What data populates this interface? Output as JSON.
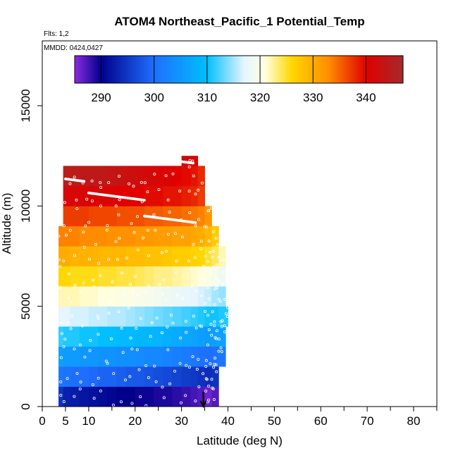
{
  "chart_data": {
    "type": "heatmap",
    "title": "ATOM4 Northeast_Pacific_1 Potential_Temp",
    "flights_note": "Flts: 1,2",
    "date_note": "MMDD: 0424,0427",
    "xlabel": "Latitude (deg N)",
    "ylabel": "Altitude (m)",
    "xlim": [
      0,
      85
    ],
    "ylim": [
      0,
      17500
    ],
    "xticks": [
      0,
      5,
      10,
      20,
      30,
      40,
      50,
      60,
      70,
      80
    ],
    "yticks": [
      0,
      5000,
      10000,
      15000
    ],
    "grid": false,
    "colorbar": {
      "range": [
        285,
        347
      ],
      "ticks": [
        290,
        300,
        310,
        320,
        330,
        340
      ],
      "stops": [
        {
          "value": 285,
          "color": "#8a2be2"
        },
        {
          "value": 290,
          "color": "#00008b"
        },
        {
          "value": 300,
          "color": "#1e6fff"
        },
        {
          "value": 310,
          "color": "#00bfff"
        },
        {
          "value": 317,
          "color": "#e6f5ff"
        },
        {
          "value": 321,
          "color": "#ffffe0"
        },
        {
          "value": 326,
          "color": "#ffd700"
        },
        {
          "value": 333,
          "color": "#ff8c00"
        },
        {
          "value": 340,
          "color": "#e00000"
        },
        {
          "value": 347,
          "color": "#a52a2a"
        }
      ]
    },
    "lat_bins": [
      [
        3.5,
        4.5
      ],
      [
        4.5,
        6
      ],
      [
        6,
        8
      ],
      [
        8,
        10
      ],
      [
        10,
        12
      ],
      [
        12,
        14
      ],
      [
        14,
        16
      ],
      [
        16,
        18
      ],
      [
        18,
        20
      ],
      [
        20,
        22
      ],
      [
        22,
        24
      ],
      [
        24,
        26
      ],
      [
        26,
        28
      ],
      [
        28,
        30
      ],
      [
        30,
        32
      ],
      [
        32,
        33.5
      ],
      [
        33.5,
        35
      ],
      [
        35,
        36.5
      ],
      [
        36.5,
        38
      ],
      [
        38,
        39.5
      ],
      [
        39.5,
        40
      ]
    ],
    "alt_bins": [
      [
        0,
        1000
      ],
      [
        1000,
        2000
      ],
      [
        2000,
        3000
      ],
      [
        3000,
        4000
      ],
      [
        4000,
        5000
      ],
      [
        5000,
        6000
      ],
      [
        6000,
        7000
      ],
      [
        7000,
        8000
      ],
      [
        8000,
        9000
      ],
      [
        9000,
        10000
      ],
      [
        10000,
        11000
      ],
      [
        11000,
        12000
      ],
      [
        12000,
        12500
      ]
    ],
    "potential_temp_K": [
      [
        294.5,
        293.0,
        292.5,
        292.0,
        291.5,
        291.0,
        290.5,
        290.0,
        290.0,
        289.5,
        289.5,
        289.0,
        289.0,
        288.5,
        288.0,
        287.5,
        287.0,
        286.0,
        287.0,
        null,
        null
      ],
      [
        301.0,
        300.5,
        300.0,
        300.0,
        299.5,
        299.0,
        299.0,
        298.5,
        298.0,
        298.0,
        297.5,
        297.0,
        296.5,
        296.0,
        295.5,
        295.0,
        294.5,
        294.0,
        294.5,
        null,
        null
      ],
      [
        306.0,
        305.5,
        305.5,
        305.0,
        305.0,
        304.5,
        304.5,
        304.0,
        304.0,
        303.5,
        303.0,
        303.0,
        302.5,
        302.0,
        301.5,
        301.0,
        300.5,
        300.0,
        300.5,
        301.0,
        null
      ],
      [
        311.5,
        311.0,
        311.0,
        310.5,
        310.5,
        310.0,
        310.0,
        309.5,
        309.5,
        309.0,
        309.0,
        308.5,
        308.0,
        307.5,
        307.0,
        306.5,
        306.0,
        305.5,
        306.0,
        306.5,
        null
      ],
      [
        317.0,
        317.0,
        316.5,
        316.5,
        316.0,
        316.0,
        315.5,
        315.5,
        315.0,
        314.5,
        314.0,
        313.5,
        313.0,
        312.5,
        312.0,
        311.5,
        311.0,
        310.5,
        310.5,
        311.0,
        311.0
      ],
      [
        322.0,
        322.0,
        322.0,
        321.5,
        321.5,
        321.0,
        321.0,
        320.5,
        320.5,
        320.0,
        319.5,
        319.0,
        318.5,
        318.0,
        317.5,
        317.0,
        316.5,
        316.0,
        315.0,
        314.5,
        null
      ],
      [
        326.0,
        326.0,
        325.5,
        325.5,
        325.5,
        325.0,
        325.0,
        324.5,
        324.5,
        324.0,
        323.5,
        323.0,
        323.0,
        322.5,
        322.0,
        321.5,
        321.0,
        320.5,
        319.5,
        318.5,
        null
      ],
      [
        330.0,
        330.0,
        329.5,
        329.5,
        329.5,
        329.0,
        329.0,
        329.0,
        328.5,
        328.5,
        328.0,
        328.0,
        327.5,
        327.0,
        327.0,
        326.5,
        326.0,
        325.0,
        324.0,
        322.0,
        null
      ],
      [
        333.5,
        333.5,
        333.5,
        333.0,
        333.0,
        333.0,
        332.5,
        332.5,
        332.5,
        332.0,
        332.0,
        331.5,
        331.5,
        331.0,
        331.0,
        330.5,
        330.0,
        329.0,
        327.0,
        null,
        null
      ],
      [
        null,
        337.0,
        337.0,
        337.0,
        336.5,
        336.5,
        336.5,
        336.0,
        336.0,
        336.0,
        335.5,
        335.5,
        335.0,
        335.0,
        334.5,
        334.0,
        333.5,
        332.0,
        null,
        null,
        null
      ],
      [
        null,
        341.0,
        341.0,
        341.0,
        340.5,
        340.5,
        340.5,
        340.0,
        340.0,
        340.0,
        339.5,
        339.5,
        339.0,
        339.0,
        338.5,
        338.0,
        337.0,
        null,
        null,
        null,
        null
      ],
      [
        null,
        344.5,
        344.5,
        344.0,
        344.0,
        344.0,
        343.5,
        343.0,
        342.5,
        342.0,
        341.5,
        341.0,
        340.5,
        340.0,
        339.5,
        339.0,
        338.0,
        null,
        null,
        null,
        null
      ],
      [
        null,
        null,
        null,
        null,
        null,
        null,
        null,
        null,
        null,
        null,
        null,
        null,
        null,
        null,
        341.5,
        341.0,
        null,
        null,
        null,
        null,
        null
      ]
    ],
    "arrow_latitude": 34.7
  }
}
